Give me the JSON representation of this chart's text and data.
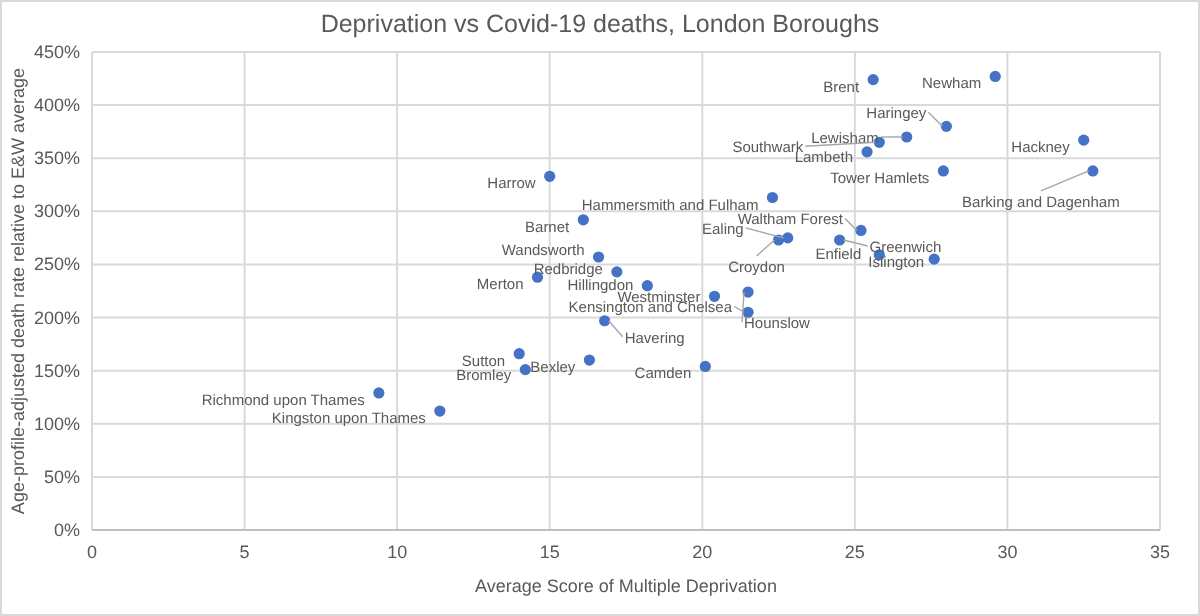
{
  "chart_data": {
    "type": "scatter",
    "title": "Deprivation vs Covid-19 deaths, London Boroughs",
    "xlabel": "Average Score of Multiple Deprivation",
    "ylabel": "Age-profile-adjusted death rate relative to E&W average",
    "x": [
      25.6,
      29.6,
      28.0,
      26.7,
      25.8,
      25.4,
      32.5,
      27.9,
      32.8,
      22.3,
      25.2,
      22.8,
      22.5,
      24.5,
      25.8,
      27.6,
      20.4,
      21.5,
      21.5,
      18.2,
      16.8,
      16.3,
      20.1,
      15.0,
      16.1,
      16.6,
      14.6,
      17.2,
      14.0,
      14.2,
      9.4,
      11.4
    ],
    "series": [
      {
        "color": "#4472c4",
        "values": [
          424,
          427,
          380,
          370,
          365,
          356,
          367,
          338,
          338,
          313,
          282,
          275,
          273,
          273,
          259,
          255,
          220,
          205,
          224,
          230,
          197,
          160,
          154,
          333,
          292,
          257,
          238,
          243,
          166,
          151,
          129,
          112
        ]
      }
    ],
    "annotations": [
      {
        "text": "Brent",
        "x": 25.6,
        "y": 424
      },
      {
        "text": "Newham",
        "x": 29.6,
        "y": 427
      },
      {
        "text": "Haringey",
        "x": 28.0,
        "y": 380
      },
      {
        "text": "Lewisham",
        "x": 26.7,
        "y": 370
      },
      {
        "text": "Southwark",
        "x": 25.8,
        "y": 365
      },
      {
        "text": "Lambeth",
        "x": 25.4,
        "y": 356
      },
      {
        "text": "Hackney",
        "x": 32.5,
        "y": 367
      },
      {
        "text": "Tower Hamlets",
        "x": 27.9,
        "y": 338
      },
      {
        "text": "Barking and Dagenham",
        "x": 32.8,
        "y": 338
      },
      {
        "text": "Hammersmith and Fulham",
        "x": 22.3,
        "y": 313
      },
      {
        "text": "Waltham Forest",
        "x": 25.2,
        "y": 282
      },
      {
        "text": "Ealing",
        "x": 22.8,
        "y": 275
      },
      {
        "text": "Croydon",
        "x": 22.5,
        "y": 273
      },
      {
        "text": "Greenwich",
        "x": 24.5,
        "y": 273
      },
      {
        "text": "Enfield",
        "x": 25.8,
        "y": 259
      },
      {
        "text": "Islington",
        "x": 27.6,
        "y": 255
      },
      {
        "text": "Westminster",
        "x": 20.4,
        "y": 220
      },
      {
        "text": "Kensington and Chelsea",
        "x": 21.5,
        "y": 205
      },
      {
        "text": "Hounslow",
        "x": 21.5,
        "y": 224
      },
      {
        "text": "Hillingdon",
        "x": 18.2,
        "y": 230
      },
      {
        "text": "Havering",
        "x": 16.8,
        "y": 197
      },
      {
        "text": "Bexley",
        "x": 16.3,
        "y": 160
      },
      {
        "text": "Camden",
        "x": 20.1,
        "y": 154
      },
      {
        "text": "Harrow",
        "x": 15.0,
        "y": 333
      },
      {
        "text": "Barnet",
        "x": 16.1,
        "y": 292
      },
      {
        "text": "Wandsworth",
        "x": 16.6,
        "y": 257
      },
      {
        "text": "Merton",
        "x": 14.6,
        "y": 238
      },
      {
        "text": "Redbridge",
        "x": 17.2,
        "y": 243
      },
      {
        "text": "Sutton",
        "x": 14.0,
        "y": 166
      },
      {
        "text": "Bromley",
        "x": 14.2,
        "y": 151
      },
      {
        "text": "Richmond upon Thames",
        "x": 9.4,
        "y": 129
      },
      {
        "text": "Kingston upon Thames",
        "x": 11.4,
        "y": 112
      }
    ],
    "xlim": [
      0,
      35
    ],
    "xticks": [
      0,
      5,
      10,
      15,
      20,
      25,
      30,
      35
    ],
    "ylim": [
      0,
      450
    ],
    "yticks": [
      {
        "value": 0,
        "label": "0%"
      },
      {
        "value": 50,
        "label": "50%"
      },
      {
        "value": 100,
        "label": "100%"
      },
      {
        "value": 150,
        "label": "150%"
      },
      {
        "value": 200,
        "label": "200%"
      },
      {
        "value": 250,
        "label": "250%"
      },
      {
        "value": 300,
        "label": "300%"
      },
      {
        "value": 350,
        "label": "350%"
      },
      {
        "value": 400,
        "label": "400%"
      },
      {
        "value": 450,
        "label": "450%"
      }
    ],
    "grid": true,
    "marker": "circle"
  }
}
